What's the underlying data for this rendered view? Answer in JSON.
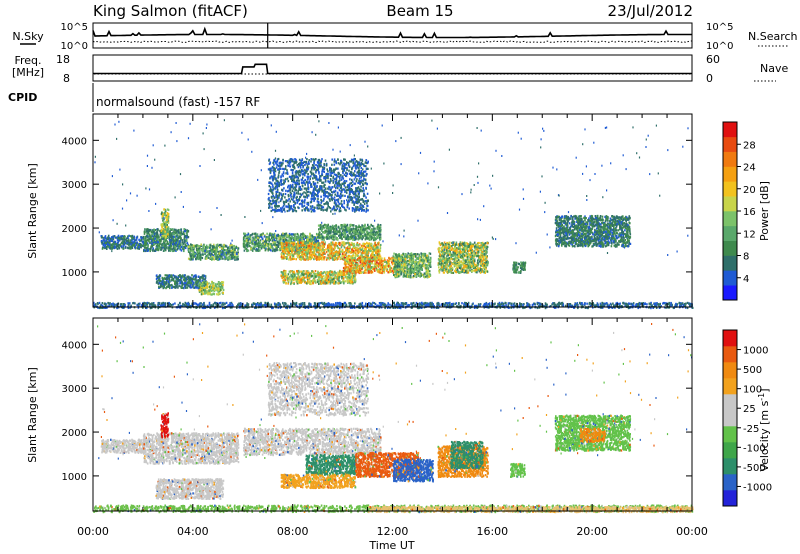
{
  "header": {
    "station": "King Salmon (fitACF)",
    "beam": "Beam 15",
    "date": "23/Jul/2012"
  },
  "noise_panel": {
    "left_label": "N.Sky",
    "right_label": "N.Search",
    "left_ticks": [
      "10^5",
      "10^0"
    ],
    "right_ticks": [
      "10^5",
      "10^0"
    ]
  },
  "freq_panel": {
    "left_label_1": "Freq.",
    "left_label_2": "[MHz]",
    "right_label": "Nave",
    "left_ticks": [
      "18",
      "8"
    ],
    "right_ticks": [
      "60",
      "0"
    ],
    "freq_series_mhz": [
      {
        "t": 0,
        "v": 10.5
      },
      {
        "t": 5.95,
        "v": 10.5
      },
      {
        "t": 6.0,
        "v": 13.5
      },
      {
        "t": 6.45,
        "v": 13.5
      },
      {
        "t": 6.5,
        "v": 14.7
      },
      {
        "t": 6.95,
        "v": 14.7
      },
      {
        "t": 7.0,
        "v": 10.5
      },
      {
        "t": 24,
        "v": 10.5
      }
    ]
  },
  "cpid": {
    "label": "CPID",
    "text": "normalsound (fast) -157 RF"
  },
  "chart_data": [
    {
      "type": "heatmap",
      "name": "Power",
      "ylabel": "Slant Range [km]",
      "xlabel": "",
      "y_ticks": [
        "4000",
        "3000",
        "2000",
        "1000"
      ],
      "y_tick_values": [
        4000,
        3000,
        2000,
        1000
      ],
      "ylim": [
        200,
        4600
      ],
      "xlim": [
        0,
        24
      ],
      "colorbar_label": "Power [dB]",
      "colorbar_ticks": [
        "28",
        "24",
        "20",
        "16",
        "12",
        "8",
        "4"
      ],
      "colorbar_tick_values": [
        28,
        24,
        20,
        16,
        12,
        8,
        4
      ],
      "colorbar_range": [
        0,
        30
      ],
      "colorbar_colors": [
        "#1a1aff",
        "#1f5bd4",
        "#2f6f6a",
        "#3f8a4e",
        "#5aa86b",
        "#7cc26a",
        "#c8d44a",
        "#f2c21e",
        "#f5a011",
        "#f07a10",
        "#e84b10",
        "#e01010"
      ],
      "echo_regions": [
        {
          "t0": 0.0,
          "t1": 24.0,
          "r0": 200,
          "r1": 320,
          "v": 5,
          "spread": 2
        },
        {
          "t0": 0.3,
          "t1": 2.0,
          "r0": 1550,
          "r1": 1850,
          "v": 6,
          "spread": 3
        },
        {
          "t0": 2.0,
          "t1": 3.8,
          "r0": 1500,
          "r1": 2000,
          "v": 8,
          "spread": 4
        },
        {
          "t0": 2.7,
          "t1": 3.0,
          "r0": 1800,
          "r1": 2450,
          "v": 14,
          "spread": 6
        },
        {
          "t0": 3.8,
          "t1": 5.8,
          "r0": 1300,
          "r1": 1650,
          "v": 10,
          "spread": 6
        },
        {
          "t0": 2.5,
          "t1": 4.5,
          "r0": 650,
          "r1": 950,
          "v": 6,
          "spread": 3
        },
        {
          "t0": 4.2,
          "t1": 5.2,
          "r0": 500,
          "r1": 800,
          "v": 14,
          "spread": 5
        },
        {
          "t0": 6.0,
          "t1": 9.0,
          "r0": 1500,
          "r1": 1900,
          "v": 10,
          "spread": 6
        },
        {
          "t0": 7.5,
          "t1": 11.5,
          "r0": 1300,
          "r1": 1700,
          "v": 18,
          "spread": 8
        },
        {
          "t0": 9.0,
          "t1": 11.5,
          "r0": 1750,
          "r1": 2100,
          "v": 10,
          "spread": 5
        },
        {
          "t0": 7.5,
          "t1": 10.5,
          "r0": 750,
          "r1": 1050,
          "v": 16,
          "spread": 8
        },
        {
          "t0": 10.0,
          "t1": 12.5,
          "r0": 1000,
          "r1": 1350,
          "v": 20,
          "spread": 8
        },
        {
          "t0": 12.0,
          "t1": 13.5,
          "r0": 900,
          "r1": 1450,
          "v": 12,
          "spread": 6
        },
        {
          "t0": 13.8,
          "t1": 15.8,
          "r0": 1000,
          "r1": 1700,
          "v": 14,
          "spread": 8
        },
        {
          "t0": 16.8,
          "t1": 17.3,
          "r0": 1000,
          "r1": 1250,
          "v": 8,
          "spread": 3
        },
        {
          "t0": 18.5,
          "t1": 21.5,
          "r0": 1600,
          "r1": 2300,
          "v": 7,
          "spread": 3
        },
        {
          "t0": 7.0,
          "t1": 11.0,
          "r0": 2400,
          "r1": 3600,
          "v": 5,
          "spread": 2
        }
      ]
    },
    {
      "type": "heatmap",
      "name": "Velocity",
      "ylabel": "Slant Range [km]",
      "xlabel": "Time UT",
      "y_ticks": [
        "4000",
        "3000",
        "2000",
        "1000"
      ],
      "y_tick_values": [
        4000,
        3000,
        2000,
        1000
      ],
      "ylim": [
        200,
        4600
      ],
      "xlim": [
        0,
        24
      ],
      "x_ticks": [
        "00:00",
        "04:00",
        "08:00",
        "12:00",
        "16:00",
        "20:00",
        "00:00"
      ],
      "x_tick_values": [
        0,
        4,
        8,
        12,
        16,
        20,
        24
      ],
      "colorbar_label": "Velocity [m s^-1]",
      "colorbar_ticks": [
        "1000",
        "500",
        "100",
        "25",
        "-25",
        "-100",
        "-500",
        "-1000"
      ],
      "colorbar_colors": [
        "#2323d9",
        "#2a63c8",
        "#2d8f6a",
        "#3fa64a",
        "#62c24a",
        "#c8c8c8",
        "#c8c8c8",
        "#f2a21e",
        "#f08a11",
        "#e95a10",
        "#e01010"
      ],
      "echo_regions": [
        {
          "t0": 0.0,
          "t1": 24.0,
          "r0": 200,
          "r1": 350,
          "c": "#6cc04a"
        },
        {
          "t0": 11.0,
          "t1": 24.0,
          "r0": 200,
          "r1": 320,
          "c": "#e8c070"
        },
        {
          "t0": 0.3,
          "t1": 2.0,
          "r0": 1550,
          "r1": 1850,
          "c": "#c8c8c8"
        },
        {
          "t0": 2.0,
          "t1": 5.8,
          "r0": 1300,
          "r1": 2000,
          "c": "#c8c8c8"
        },
        {
          "t0": 2.7,
          "t1": 3.0,
          "r0": 1900,
          "r1": 2450,
          "c": "#e01010"
        },
        {
          "t0": 2.5,
          "t1": 5.2,
          "r0": 500,
          "r1": 950,
          "c": "#c8c8c8"
        },
        {
          "t0": 6.0,
          "t1": 11.5,
          "r0": 1500,
          "r1": 2100,
          "c": "#c8c8c8"
        },
        {
          "t0": 8.5,
          "t1": 10.5,
          "r0": 1050,
          "r1": 1500,
          "c": "#2d8f6a"
        },
        {
          "t0": 7.5,
          "t1": 10.5,
          "r0": 750,
          "r1": 1050,
          "c": "#f2a21e"
        },
        {
          "t0": 10.5,
          "t1": 13.0,
          "r0": 1000,
          "r1": 1550,
          "c": "#e95a10"
        },
        {
          "t0": 12.0,
          "t1": 13.6,
          "r0": 900,
          "r1": 1400,
          "c": "#2a63c8"
        },
        {
          "t0": 13.8,
          "t1": 15.8,
          "r0": 1000,
          "r1": 1700,
          "c": "#f08a11"
        },
        {
          "t0": 14.3,
          "t1": 15.6,
          "r0": 1200,
          "r1": 1800,
          "c": "#2d8f6a"
        },
        {
          "t0": 16.7,
          "t1": 17.3,
          "r0": 1000,
          "r1": 1300,
          "c": "#62c24a"
        },
        {
          "t0": 18.5,
          "t1": 21.5,
          "r0": 1600,
          "r1": 2400,
          "c": "#62c24a"
        },
        {
          "t0": 19.5,
          "t1": 20.5,
          "r0": 1800,
          "r1": 2100,
          "c": "#f08a11"
        },
        {
          "t0": 7.0,
          "t1": 11.0,
          "r0": 2400,
          "r1": 3600,
          "c": "#c8c8c8"
        }
      ]
    }
  ]
}
